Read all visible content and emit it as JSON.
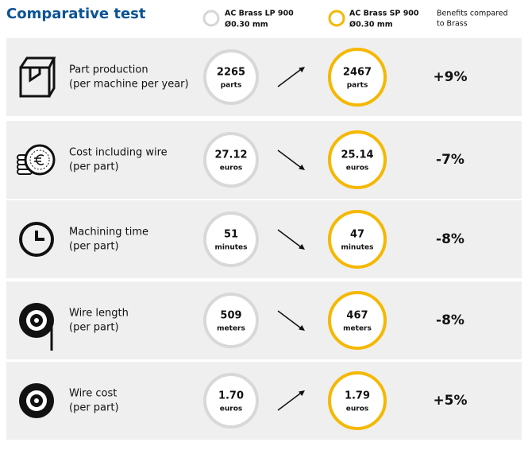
{
  "header": {
    "title": "Comparative test",
    "columns": [
      {
        "name": "AC Brass LP 900",
        "spec": "Ø0.30 mm"
      },
      {
        "name": "AC Brass SP 900",
        "spec": "Ø0.30 mm"
      },
      {
        "lines": [
          "Benefits compared",
          "to Brass"
        ]
      }
    ]
  },
  "rows": [
    {
      "label": [
        "Part production",
        "(per machine per year)"
      ],
      "lp": {
        "value": "2265",
        "unit": "parts"
      },
      "sp": {
        "value": "2467",
        "unit": "parts"
      },
      "benefit": "+9%"
    },
    {
      "label": [
        "Cost including wire",
        "(per part)"
      ],
      "lp": {
        "value": "27.12",
        "unit": "euros"
      },
      "sp": {
        "value": "25.14",
        "unit": "euros"
      },
      "benefit": "-7%"
    },
    {
      "label": [
        "Machining time",
        "(per part)"
      ],
      "lp": {
        "value": "51",
        "unit": "minutes"
      },
      "sp": {
        "value": "47",
        "unit": "minutes"
      },
      "benefit": "-8%"
    },
    {
      "label": [
        "Wire length",
        "(per part)"
      ],
      "lp": {
        "value": "509",
        "unit": "meters"
      },
      "sp": {
        "value": "467",
        "unit": "meters"
      },
      "benefit": "-8%"
    },
    {
      "label": [
        "Wire cost",
        "(per part)"
      ],
      "lp": {
        "value": "1.70",
        "unit": "euros"
      },
      "sp": {
        "value": "1.79",
        "unit": "euros"
      },
      "benefit": "+5%"
    }
  ]
}
